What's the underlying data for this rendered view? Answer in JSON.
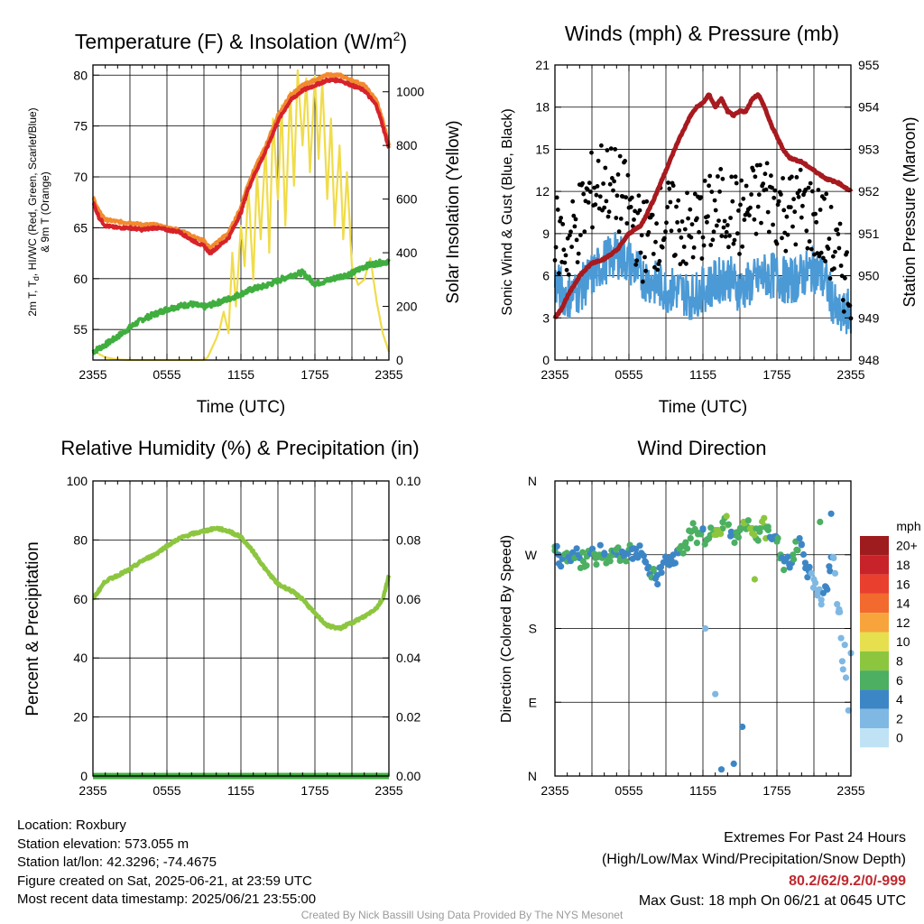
{
  "panels": {
    "temperature": {
      "title_text": "Temperature (F) & Insolation (W/m",
      "title_sup": "2",
      "title_end": ")",
      "xlabel": "Time (UTC)",
      "ylabel_line1": "2m T, T",
      "ylabel_sub": "d",
      "ylabel_line1_rest": ", HI/WC (Red, Green, Scarlet/Blue)",
      "ylabel_line2": "& 9m T (Orange)",
      "ylabel_right": "Solar Insolation (Yellow)"
    },
    "winds": {
      "title": "Winds (mph) & Pressure (mb)",
      "xlabel": "Time (UTC)",
      "ylabel_left": "Sonic Wind & Gust (Blue, Black)",
      "ylabel_right": "Station Pressure (Maroon)"
    },
    "humidity": {
      "title": "Relative Humidity (%) & Precipitation (in)",
      "ylabel_left": "Percent & Precipitation"
    },
    "direction": {
      "title": "Wind Direction",
      "ylabel_left": "Direction (Colored By Speed)",
      "legend_title": "mph"
    }
  },
  "chart_data": [
    {
      "type": "line",
      "id": "temperature",
      "x_ticks": [
        "2355",
        "0555",
        "1155",
        "1755",
        "2355"
      ],
      "x_range_hours": [
        0,
        24
      ],
      "ylim": [
        52,
        81
      ],
      "y_ticks": [
        55,
        60,
        65,
        70,
        75,
        80
      ],
      "y2lim": [
        0,
        1100
      ],
      "y2_ticks": [
        0,
        200,
        400,
        600,
        800,
        1000
      ],
      "series": [
        {
          "color": "#d6232a",
          "axis": "left",
          "x": [
            0,
            0.5,
            1,
            2,
            3,
            4,
            5,
            6,
            7,
            8,
            9,
            9.5,
            10,
            11,
            12,
            12.5,
            13,
            14,
            15,
            16,
            17,
            18,
            19,
            20,
            21,
            22,
            23,
            23.5,
            24
          ],
          "values": [
            67.5,
            66,
            65.2,
            65,
            65,
            64.8,
            65,
            64.8,
            64.6,
            63.8,
            63.2,
            62.5,
            63,
            64,
            66.5,
            68.5,
            70,
            72.5,
            75.5,
            77.5,
            78.5,
            79,
            79.5,
            79.5,
            79,
            78.5,
            77,
            75,
            72.8
          ]
        },
        {
          "color": "#f28a2e",
          "axis": "left",
          "x": [
            0,
            0.5,
            1,
            2,
            3,
            4,
            5,
            6,
            7,
            8,
            9,
            9.5,
            10,
            11,
            12,
            12.5,
            13,
            14,
            15,
            16,
            17,
            18,
            19,
            20,
            21,
            22,
            23,
            23.5,
            24
          ],
          "values": [
            68,
            66.6,
            65.8,
            65.6,
            65.5,
            65.3,
            65.3,
            65,
            64.8,
            64.2,
            63.7,
            63,
            63.5,
            64.5,
            67,
            69,
            70.5,
            73,
            76,
            78,
            79,
            79.5,
            80,
            80,
            79.5,
            79,
            77.5,
            75.5,
            73.2
          ]
        },
        {
          "color": "#3fae3f",
          "axis": "left",
          "x": [
            0,
            1,
            2,
            3,
            4,
            5,
            6,
            7,
            8,
            9,
            10,
            11,
            12,
            13,
            14,
            15,
            16,
            17,
            18,
            19,
            20,
            21,
            22,
            23,
            24
          ],
          "values": [
            52.8,
            53.5,
            54.3,
            55.2,
            56,
            56.5,
            57,
            57.3,
            57.5,
            57.2,
            57.6,
            58,
            58.5,
            59,
            59.3,
            59.8,
            60.3,
            60.6,
            59.5,
            59.8,
            60.2,
            60.5,
            61.2,
            61.5,
            61.7
          ]
        },
        {
          "color": "#f0dc4a",
          "axis": "right",
          "x": [
            0,
            1,
            2,
            3,
            4,
            5,
            6,
            7,
            8,
            9,
            9.3,
            9.6,
            10,
            10.3,
            10.6,
            11,
            11.3,
            11.6,
            12,
            12.3,
            12.6,
            13,
            13.3,
            13.6,
            14,
            14.3,
            14.6,
            15,
            15.3,
            15.6,
            16,
            16.3,
            16.6,
            17,
            17.3,
            17.6,
            18,
            18.3,
            18.6,
            19,
            19.3,
            19.6,
            20,
            20.3,
            20.6,
            21,
            21.5,
            22,
            22.5,
            23,
            23.5,
            24
          ],
          "values": [
            35,
            10,
            2,
            0,
            0,
            0,
            0,
            0,
            0,
            0,
            10,
            40,
            80,
            120,
            180,
            100,
            400,
            200,
            500,
            350,
            650,
            300,
            700,
            450,
            800,
            400,
            900,
            600,
            950,
            500,
            1000,
            650,
            1080,
            800,
            1050,
            700,
            1060,
            750,
            1040,
            600,
            900,
            500,
            800,
            450,
            700,
            350,
            280,
            300,
            380,
            220,
            100,
            30
          ]
        }
      ]
    },
    {
      "type": "line",
      "id": "winds",
      "x_ticks": [
        "2355",
        "0555",
        "1155",
        "1755",
        "2355"
      ],
      "x_range_hours": [
        0,
        24
      ],
      "ylim": [
        0,
        21
      ],
      "y_ticks": [
        0,
        3,
        6,
        9,
        12,
        15,
        18,
        21
      ],
      "y2lim": [
        948,
        955
      ],
      "y2_ticks": [
        948,
        949,
        950,
        951,
        952,
        953,
        954,
        955
      ],
      "series": [
        {
          "color": "#4b9ad6",
          "axis": "left",
          "kind": "wind",
          "x": [
            0,
            1,
            2,
            3,
            4,
            5,
            6,
            7,
            8,
            9,
            10,
            11,
            12,
            13,
            14,
            15,
            16,
            17,
            18,
            19,
            20,
            21,
            22,
            23,
            24
          ],
          "values": [
            5.5,
            4.5,
            5,
            6,
            7,
            7.5,
            7,
            6,
            5.5,
            5,
            5,
            4.5,
            5,
            5.5,
            6,
            5,
            5.5,
            6,
            6,
            5.5,
            6,
            6.5,
            5.5,
            3,
            3.5
          ]
        },
        {
          "color": "#000000",
          "axis": "left",
          "kind": "gust",
          "x": [
            0,
            1,
            2,
            3,
            4,
            5,
            6,
            7,
            8,
            9,
            10,
            11,
            12,
            13,
            14,
            15,
            16,
            17,
            18,
            19,
            20,
            21,
            22,
            23,
            24
          ],
          "values": [
            9,
            8,
            10,
            12,
            13,
            12,
            11,
            8.5,
            9,
            10,
            9.5,
            9,
            10,
            10.5,
            11,
            10,
            11,
            12,
            11,
            10.5,
            11,
            10,
            9,
            7,
            5
          ]
        },
        {
          "color": "#a71a1f",
          "axis": "right",
          "x": [
            0,
            0.5,
            1,
            2,
            3,
            4,
            5,
            6,
            7,
            8,
            9,
            10,
            11,
            11.5,
            12,
            12.5,
            13,
            13.5,
            14,
            14.5,
            15,
            15.5,
            16,
            16.5,
            17,
            17.5,
            18,
            18.5,
            19,
            20,
            21,
            22,
            23,
            24
          ],
          "values": [
            949,
            949.2,
            949.5,
            950,
            950.3,
            950.4,
            950.6,
            951,
            951.2,
            951.8,
            952.5,
            953.2,
            953.8,
            954,
            954.1,
            954.3,
            954,
            954.2,
            953.9,
            953.8,
            953.9,
            953.9,
            954.2,
            954.3,
            954,
            953.6,
            953.3,
            953,
            952.8,
            952.7,
            952.5,
            952.3,
            952.2,
            952.0
          ]
        }
      ]
    },
    {
      "type": "line",
      "id": "humidity",
      "x_ticks": [
        "2355",
        "0555",
        "1155",
        "1755",
        "2355"
      ],
      "x_range_hours": [
        0,
        24
      ],
      "ylim": [
        0,
        100
      ],
      "y_ticks": [
        0,
        20,
        40,
        60,
        80,
        100
      ],
      "y2lim": [
        0,
        0.1
      ],
      "y2_ticks": [
        "0.00",
        "0.02",
        "0.04",
        "0.06",
        "0.08",
        "0.10"
      ],
      "series": [
        {
          "color": "#8cc63f",
          "axis": "left",
          "x": [
            0,
            1,
            2,
            3,
            4,
            5,
            6,
            7,
            8,
            9,
            10,
            11,
            12,
            13,
            14,
            15,
            16,
            17,
            18,
            19,
            20,
            21,
            22,
            23,
            23.5,
            24
          ],
          "values": [
            60,
            66,
            68,
            70,
            73,
            75,
            78,
            80.5,
            82,
            83,
            84,
            83,
            81,
            76,
            70,
            65,
            63,
            60,
            55,
            51,
            50,
            52,
            54,
            57,
            60,
            68
          ]
        },
        {
          "color": "#3fae3f",
          "axis": "right",
          "name": "precip",
          "x": [
            0,
            24
          ],
          "values": [
            0,
            0
          ]
        }
      ]
    },
    {
      "type": "scatter",
      "id": "direction",
      "x_ticks": [
        "2355",
        "0555",
        "1155",
        "1755",
        "2355"
      ],
      "x_range_hours": [
        0,
        24
      ],
      "y_ticks": [
        "N",
        "E",
        "S",
        "W",
        "N"
      ],
      "ylim_deg": [
        0,
        360
      ],
      "legend_labels": [
        "20+",
        "18",
        "16",
        "14",
        "12",
        "10",
        "8",
        "6",
        "4",
        "2",
        "0"
      ],
      "legend_colors": [
        "#9e1b1e",
        "#c8232a",
        "#e83f2e",
        "#f26a2e",
        "#f7a43c",
        "#e6e04f",
        "#8cc63f",
        "#4caf62",
        "#3d86c6",
        "#7fb8e3",
        "#bfe3f5"
      ],
      "points": {
        "x": [
          0,
          0.3,
          0.6,
          1,
          1.3,
          1.6,
          2,
          2.3,
          2.6,
          3,
          3.3,
          3.6,
          4,
          4.3,
          4.6,
          5,
          5.3,
          5.6,
          6,
          6.3,
          6.6,
          7,
          7.3,
          7.6,
          8,
          8.3,
          8.6,
          9,
          9.3,
          9.6,
          10,
          10.3,
          10.6,
          11,
          11.3,
          11.6,
          12,
          12.3,
          12.6,
          13,
          13.3,
          13.6,
          14,
          14.3,
          14.6,
          15,
          15.3,
          15.6,
          16,
          16.3,
          16.6,
          17,
          17.3,
          17.6,
          18,
          18.3,
          18.6,
          19,
          19.3,
          19.6,
          20,
          20.3,
          20.6,
          21,
          21.3,
          21.6,
          22,
          22.3,
          22.6,
          23,
          23.3,
          23.6,
          24,
          12.2,
          13.5,
          14.5,
          15.2,
          16.2,
          17.1,
          13.2,
          21.5,
          22.4,
          23.1,
          23.5,
          13,
          23.8
        ],
        "deg": [
          275,
          270,
          265,
          262,
          268,
          270,
          266,
          262,
          268,
          272,
          266,
          270,
          272,
          268,
          275,
          270,
          266,
          272,
          276,
          265,
          270,
          272,
          262,
          255,
          250,
          245,
          255,
          262,
          266,
          270,
          272,
          280,
          285,
          290,
          300,
          295,
          302,
          288,
          294,
          300,
          296,
          302,
          306,
          298,
          294,
          300,
          310,
          304,
          296,
          290,
          298,
          305,
          300,
          290,
          286,
          270,
          262,
          258,
          270,
          276,
          283,
          260,
          250,
          240,
          225,
          215,
          230,
          250,
          266,
          200,
          140,
          120,
          150,
          180,
          8,
          15,
          60,
          240,
          290,
          300,
          310,
          320,
          200,
          160,
          100,
          80,
          50,
          5
        ],
        "speed": [
          6,
          4,
          4,
          6,
          4,
          6,
          4,
          6,
          6,
          4,
          6,
          6,
          4,
          6,
          6,
          4,
          6,
          4,
          6,
          4,
          4,
          4,
          4,
          4,
          6,
          4,
          4,
          4,
          4,
          4,
          4,
          6,
          6,
          6,
          6,
          6,
          4,
          6,
          6,
          8,
          8,
          6,
          8,
          4,
          6,
          6,
          8,
          6,
          8,
          6,
          6,
          8,
          6,
          4,
          6,
          6,
          4,
          4,
          6,
          6,
          4,
          4,
          4,
          2,
          2,
          2,
          4,
          4,
          2,
          2,
          2,
          2,
          2,
          2,
          4,
          4,
          4,
          8,
          8,
          8,
          6,
          4,
          2,
          2,
          2,
          2,
          4,
          4
        ]
      }
    }
  ],
  "footer": {
    "location": "Location: Roxbury",
    "elevation": "Station elevation: 573.055 m",
    "latlon": "Station lat/lon: 42.3296; -74.4675",
    "created": "Figure created on Sat, 2025-06-21, at 23:59 UTC",
    "recent": "Most recent data timestamp: 2025/06/21 23:55:00",
    "extremes_title": "Extremes For Past 24 Hours",
    "extremes_fields": "(High/Low/Max Wind/Precipitation/Snow Depth)",
    "extremes_values": "80.2/62/9.2/0/-999",
    "max_gust": "Max Gust: 18 mph On 06/21 at 0645 UTC",
    "credit": "Created By Nick Bassill Using Data Provided By The NYS Mesonet"
  }
}
